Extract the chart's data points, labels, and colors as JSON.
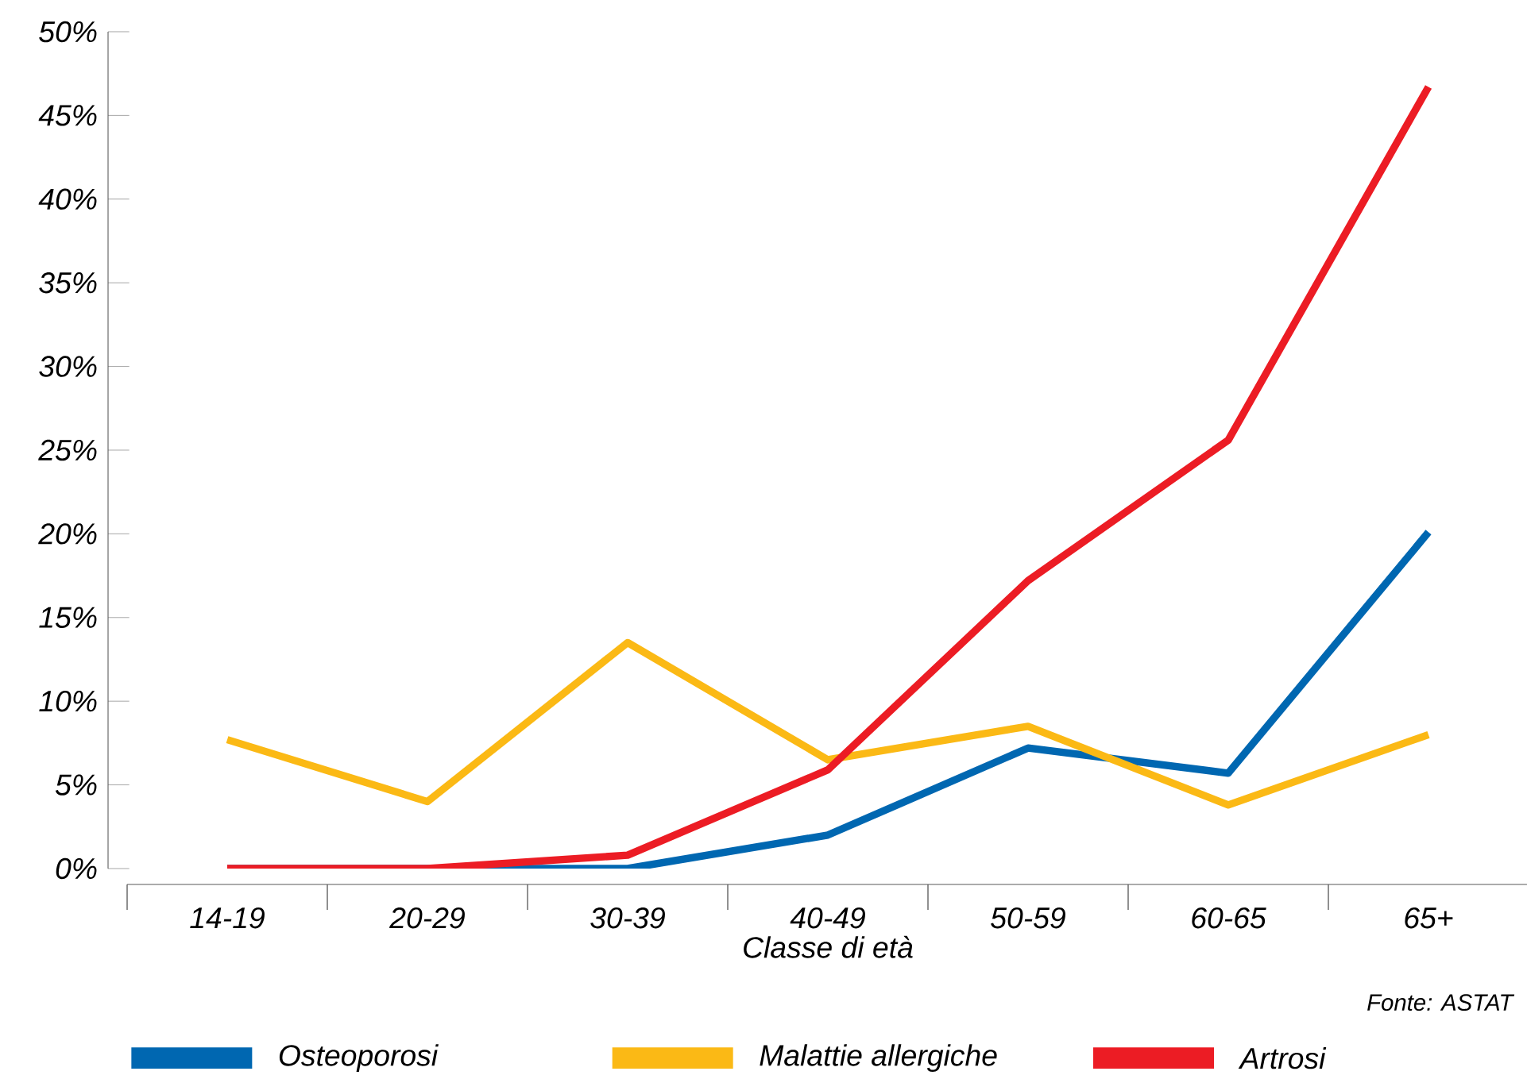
{
  "chart_data": {
    "type": "line",
    "xlabel": "Classe di età",
    "categories": [
      "14-19",
      "20-29",
      "30-39",
      "40-49",
      "50-59",
      "60-65",
      "65+"
    ],
    "series": [
      {
        "name": "Osteoporosi",
        "color": "#0067b1",
        "values": [
          0,
          0,
          0,
          2.0,
          7.2,
          5.7,
          20.1
        ]
      },
      {
        "name": "Malattie allergiche",
        "color": "#fbb915",
        "values": [
          7.7,
          4.0,
          13.5,
          6.5,
          8.5,
          3.8,
          8.0
        ]
      },
      {
        "name": "Artrosi",
        "color": "#ec1c24",
        "values": [
          0,
          0,
          0.8,
          5.9,
          17.2,
          25.6,
          46.7
        ]
      }
    ],
    "ylim": [
      0,
      50
    ],
    "yticks": [
      {
        "value": 0,
        "label": "0%"
      },
      {
        "value": 5,
        "label": "5%"
      },
      {
        "value": 10,
        "label": "10%"
      },
      {
        "value": 15,
        "label": "15%"
      },
      {
        "value": 20,
        "label": "20%"
      },
      {
        "value": 25,
        "label": "25%"
      },
      {
        "value": 30,
        "label": "30%"
      },
      {
        "value": 35,
        "label": "35%"
      },
      {
        "value": 40,
        "label": "40%"
      },
      {
        "value": 45,
        "label": "45%"
      },
      {
        "value": 50,
        "label": "50%"
      }
    ],
    "grid": false,
    "legend": "bottom",
    "marker": "none",
    "line_style": "solid",
    "annotations": [
      "Fonte: ASTAT"
    ]
  }
}
